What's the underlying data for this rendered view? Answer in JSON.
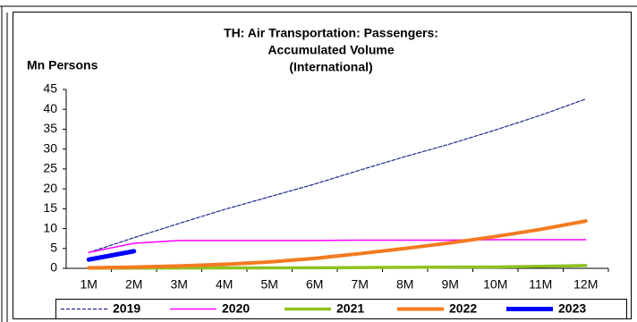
{
  "chart_data": {
    "type": "line",
    "title": [
      "TH: Air Transportation: Passengers:",
      "Accumulated Volume",
      "(International)"
    ],
    "y_label": "Mn Persons",
    "categories": [
      "1M",
      "2M",
      "3M",
      "4M",
      "5M",
      "6M",
      "7M",
      "8M",
      "9M",
      "10M",
      "11M",
      "12M"
    ],
    "series": [
      {
        "name": "2019",
        "color": "#1f2a8c",
        "values": [
          4.0,
          7.7,
          11.3,
          14.8,
          18.0,
          21.2,
          24.7,
          28.1,
          31.3,
          34.8,
          38.5,
          42.6
        ]
      },
      {
        "name": "2020",
        "color": "#ff00ff",
        "values": [
          4.0,
          6.3,
          7.0,
          7.0,
          7.0,
          7.0,
          7.1,
          7.1,
          7.1,
          7.2,
          7.2,
          7.2
        ]
      },
      {
        "name": "2021",
        "color": "#8dc21f",
        "values": [
          0.05,
          0.07,
          0.08,
          0.1,
          0.12,
          0.15,
          0.2,
          0.25,
          0.3,
          0.35,
          0.5,
          0.7
        ]
      },
      {
        "name": "2022",
        "color": "#f47a20",
        "values": [
          0.1,
          0.3,
          0.6,
          1.0,
          1.6,
          2.5,
          3.7,
          5.0,
          6.4,
          8.0,
          9.8,
          11.9
        ]
      },
      {
        "name": "2023",
        "color": "#0000ff",
        "values": [
          2.2,
          4.3,
          null,
          null,
          null,
          null,
          null,
          null,
          null,
          null,
          null,
          null
        ]
      }
    ],
    "ylim": [
      0,
      45
    ],
    "yticks": [
      0,
      5,
      10,
      15,
      20,
      25,
      30,
      35,
      40,
      45
    ],
    "grid": false,
    "legend": "bottom"
  }
}
